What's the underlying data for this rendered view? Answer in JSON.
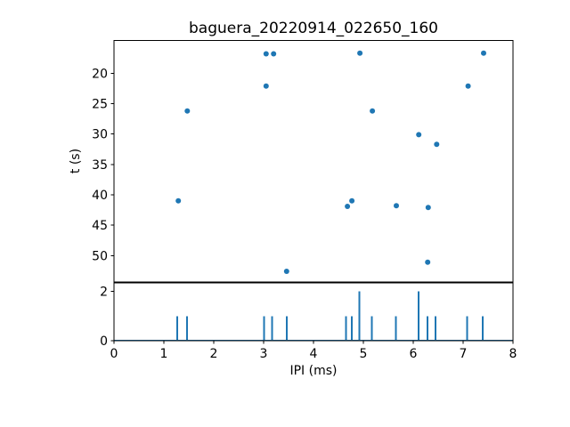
{
  "figure": {
    "title": "baguera_20220914_022650_160",
    "background": "#ffffff"
  },
  "colors": {
    "accent": "#1f77b4",
    "axis": "#000000"
  },
  "chart_data": [
    {
      "type": "scatter",
      "title": "baguera_20220914_022650_160",
      "xlabel": "",
      "ylabel": "t (s)",
      "xlim": [
        0,
        8
      ],
      "ylim": [
        14.6,
        54.35
      ],
      "y_inverted": true,
      "yticks": [
        20,
        25,
        30,
        35,
        40,
        45,
        50
      ],
      "grid": false,
      "legend": "none",
      "marker": "circle",
      "marker_color": "#1f77b4",
      "points": [
        [
          3.05,
          16.8
        ],
        [
          3.2,
          16.8
        ],
        [
          4.93,
          16.7
        ],
        [
          7.41,
          16.7
        ],
        [
          3.05,
          22.1
        ],
        [
          7.1,
          22.1
        ],
        [
          1.47,
          26.2
        ],
        [
          5.18,
          26.2
        ],
        [
          6.11,
          30.1
        ],
        [
          6.47,
          31.7
        ],
        [
          1.29,
          41.0
        ],
        [
          4.77,
          41.0
        ],
        [
          4.68,
          41.9
        ],
        [
          5.66,
          41.8
        ],
        [
          6.3,
          42.1
        ],
        [
          6.29,
          51.1
        ],
        [
          3.46,
          52.6
        ]
      ]
    },
    {
      "type": "bar",
      "title": "",
      "xlabel": "IPI (ms)",
      "ylabel": "",
      "xlim": [
        0,
        8
      ],
      "ylim": [
        0,
        2.35
      ],
      "xticks": [
        0,
        1,
        2,
        3,
        4,
        5,
        6,
        7,
        8
      ],
      "yticks": [
        0,
        2
      ],
      "grid": false,
      "baseline_value": 0,
      "bar_color": "#1f77b4",
      "bars": [
        [
          1.27,
          1
        ],
        [
          1.46,
          1
        ],
        [
          3.01,
          1
        ],
        [
          3.17,
          1
        ],
        [
          3.46,
          1
        ],
        [
          4.65,
          1
        ],
        [
          4.77,
          1
        ],
        [
          4.92,
          2
        ],
        [
          5.17,
          1
        ],
        [
          5.65,
          1
        ],
        [
          6.11,
          2
        ],
        [
          6.29,
          1
        ],
        [
          6.45,
          1
        ],
        [
          7.08,
          1
        ],
        [
          7.39,
          1
        ]
      ]
    }
  ]
}
